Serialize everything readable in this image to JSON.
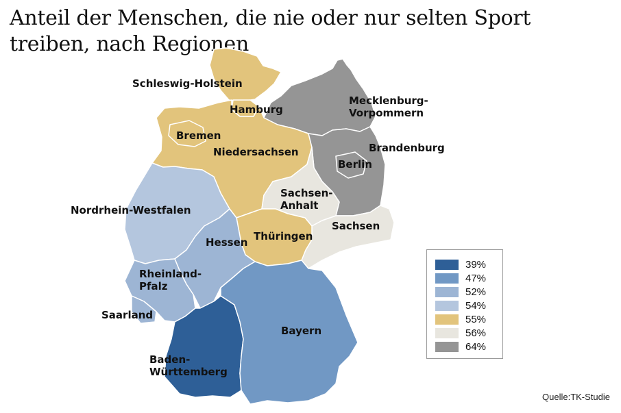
{
  "title": "Anteil der Menschen, die nie oder nur selten Sport treiben, nach Regionen",
  "source": "Quelle:TK-Studie",
  "regions": {
    "schleswig_holstein": {
      "label": "Schleswig-Holstein",
      "value": "55%",
      "color": "#e2c47c"
    },
    "hamburg": {
      "label": "Hamburg",
      "value": "55%",
      "color": "#e2c47c"
    },
    "bremen": {
      "label": "Bremen",
      "value": "55%",
      "color": "#e2c47c"
    },
    "niedersachsen": {
      "label": "Niedersachsen",
      "value": "55%",
      "color": "#e2c47c"
    },
    "mecklenburg_vorpommern": {
      "label": [
        "Mecklenburg-",
        "Vorpommern"
      ],
      "value": "64%",
      "color": "#959595"
    },
    "brandenburg": {
      "label": "Brandenburg",
      "value": "64%",
      "color": "#959595"
    },
    "berlin": {
      "label": "Berlin",
      "value": "64%",
      "color": "#959595"
    },
    "sachsen_anhalt": {
      "label": [
        "Sachsen-",
        "Anhalt"
      ],
      "value": "56%",
      "color": "#e8e6df"
    },
    "sachsen": {
      "label": "Sachsen",
      "value": "56%",
      "color": "#e8e6df"
    },
    "thueringen": {
      "label": "Thüringen",
      "value": "55%",
      "color": "#e2c47c"
    },
    "nordrhein_westfalen": {
      "label": "Nordrhein-Westfalen",
      "value": "54%",
      "color": "#b4c6de"
    },
    "hessen": {
      "label": "Hessen",
      "value": "52%",
      "color": "#9db5d4"
    },
    "rheinland_pfalz": {
      "label": [
        "Rheinland-",
        "Pfalz"
      ],
      "value": "52%",
      "color": "#9db5d4"
    },
    "saarland": {
      "label": "Saarland",
      "value": "52%",
      "color": "#9db5d4"
    },
    "baden_wuerttemberg": {
      "label": [
        "Baden-",
        "Württemberg"
      ],
      "value": "39%",
      "color": "#2e5f97"
    },
    "bayern": {
      "label": "Bayern",
      "value": "47%",
      "color": "#7198c4"
    }
  },
  "legend": [
    {
      "value": "39%",
      "color": "#2e5f97"
    },
    {
      "value": "47%",
      "color": "#7198c4"
    },
    {
      "value": "52%",
      "color": "#9db5d4"
    },
    {
      "value": "54%",
      "color": "#b4c6de"
    },
    {
      "value": "55%",
      "color": "#e2c47c"
    },
    {
      "value": "56%",
      "color": "#e8e6df"
    },
    {
      "value": "64%",
      "color": "#959595"
    }
  ]
}
